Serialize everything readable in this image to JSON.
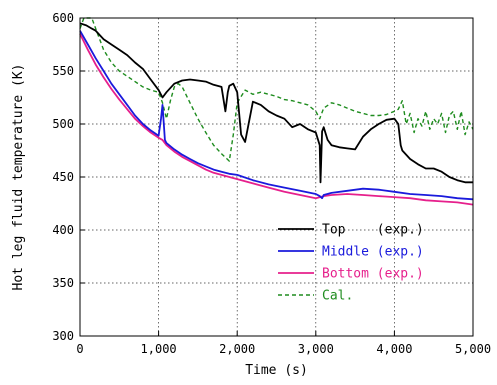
{
  "chart_data": {
    "type": "line",
    "title": "",
    "xlabel": "Time (s)",
    "ylabel": "Hot leg fluid temperature (K)",
    "xlim": [
      0,
      5000
    ],
    "ylim": [
      300,
      600
    ],
    "x_ticks": [
      0,
      1000,
      2000,
      3000,
      4000,
      5000
    ],
    "x_tick_labels": [
      "0",
      "1,000",
      "2,000",
      "3,000",
      "4,000",
      "5,000"
    ],
    "y_ticks": [
      300,
      350,
      400,
      450,
      500,
      550,
      600
    ],
    "y_tick_labels": [
      "300",
      "350",
      "400",
      "450",
      "500",
      "550",
      "600"
    ],
    "grid": true,
    "legend_position": "lower-right",
    "series": [
      {
        "name": "Top    (exp.)",
        "color": "#000000",
        "dash": "solid",
        "x": [
          0,
          80,
          150,
          200,
          300,
          400,
          500,
          600,
          700,
          800,
          900,
          1000,
          1050,
          1100,
          1200,
          1300,
          1400,
          1500,
          1600,
          1700,
          1800,
          1850,
          1880,
          1900,
          1950,
          2000,
          2050,
          2100,
          2200,
          2300,
          2400,
          2500,
          2600,
          2700,
          2800,
          2900,
          3000,
          3050,
          3060,
          3080,
          3100,
          3150,
          3200,
          3300,
          3400,
          3500,
          3600,
          3700,
          3800,
          3900,
          4000,
          4050,
          4080,
          4100,
          4200,
          4300,
          4400,
          4500,
          4600,
          4700,
          4800,
          4900,
          5000
        ],
        "y": [
          595,
          593,
          590,
          588,
          580,
          575,
          570,
          565,
          558,
          552,
          542,
          532,
          525,
          530,
          538,
          541,
          542,
          541,
          540,
          537,
          535,
          512,
          530,
          536,
          538,
          530,
          490,
          483,
          521,
          518,
          512,
          508,
          505,
          497,
          500,
          495,
          492,
          480,
          445,
          493,
          497,
          485,
          480,
          478,
          477,
          476,
          488,
          495,
          500,
          504,
          505,
          500,
          480,
          475,
          467,
          462,
          458,
          458,
          455,
          450,
          447,
          445,
          445
        ]
      },
      {
        "name": "Middle (exp.)",
        "color": "#1a1adc",
        "dash": "solid",
        "x": [
          0,
          100,
          200,
          300,
          400,
          500,
          600,
          700,
          800,
          900,
          1000,
          1030,
          1050,
          1080,
          1100,
          1200,
          1300,
          1400,
          1500,
          1600,
          1700,
          1800,
          1900,
          2000,
          2200,
          2400,
          2600,
          2800,
          3000,
          3050,
          3080,
          3100,
          3200,
          3400,
          3600,
          3800,
          4000,
          4200,
          4400,
          4600,
          4800,
          5000
        ],
        "y": [
          588,
          575,
          562,
          550,
          538,
          528,
          518,
          508,
          500,
          494,
          489,
          505,
          518,
          485,
          482,
          476,
          471,
          467,
          463,
          460,
          457,
          455,
          453,
          452,
          447,
          443,
          440,
          437,
          434,
          432,
          430,
          433,
          435,
          437,
          439,
          438,
          436,
          434,
          433,
          432,
          430,
          429
        ]
      },
      {
        "name": "Bottom (exp.)",
        "color": "#e6208c",
        "dash": "solid",
        "x": [
          0,
          100,
          200,
          300,
          400,
          500,
          600,
          700,
          800,
          900,
          1000,
          1050,
          1100,
          1200,
          1300,
          1400,
          1500,
          1600,
          1700,
          1800,
          1900,
          2000,
          2200,
          2400,
          2600,
          2800,
          3000,
          3100,
          3200,
          3400,
          3600,
          3800,
          4000,
          4200,
          4400,
          4600,
          4800,
          5000
        ],
        "y": [
          585,
          570,
          556,
          544,
          533,
          523,
          514,
          505,
          498,
          492,
          487,
          485,
          480,
          474,
          469,
          465,
          461,
          457,
          454,
          452,
          450,
          448,
          444,
          440,
          436,
          433,
          430,
          432,
          433,
          434,
          433,
          432,
          431,
          430,
          428,
          427,
          426,
          424
        ]
      },
      {
        "name": "Cal.",
        "color": "#1e8c1e",
        "dash": "dashed",
        "x": [
          0,
          50,
          100,
          150,
          200,
          300,
          400,
          500,
          600,
          700,
          800,
          900,
          1000,
          1050,
          1100,
          1150,
          1200,
          1250,
          1300,
          1400,
          1500,
          1600,
          1700,
          1800,
          1900,
          1950,
          2000,
          2100,
          2200,
          2300,
          2400,
          2500,
          2600,
          2700,
          2800,
          2900,
          3000,
          3050,
          3100,
          3200,
          3300,
          3400,
          3500,
          3600,
          3700,
          3800,
          3900,
          4000,
          4050,
          4100,
          4150,
          4200,
          4250,
          4300,
          4350,
          4400,
          4450,
          4500,
          4550,
          4600,
          4650,
          4700,
          4750,
          4800,
          4850,
          4900,
          4950,
          5000
        ],
        "y": [
          590,
          600,
          605,
          600,
          590,
          570,
          558,
          550,
          545,
          540,
          535,
          532,
          530,
          520,
          505,
          522,
          535,
          538,
          535,
          520,
          505,
          492,
          480,
          472,
          465,
          490,
          520,
          532,
          528,
          530,
          528,
          526,
          523,
          522,
          520,
          518,
          512,
          505,
          515,
          520,
          518,
          515,
          512,
          510,
          508,
          508,
          509,
          512,
          514,
          522,
          500,
          510,
          492,
          505,
          498,
          512,
          495,
          505,
          500,
          510,
          492,
          508,
          512,
          495,
          512,
          490,
          502,
          495
        ]
      }
    ]
  }
}
